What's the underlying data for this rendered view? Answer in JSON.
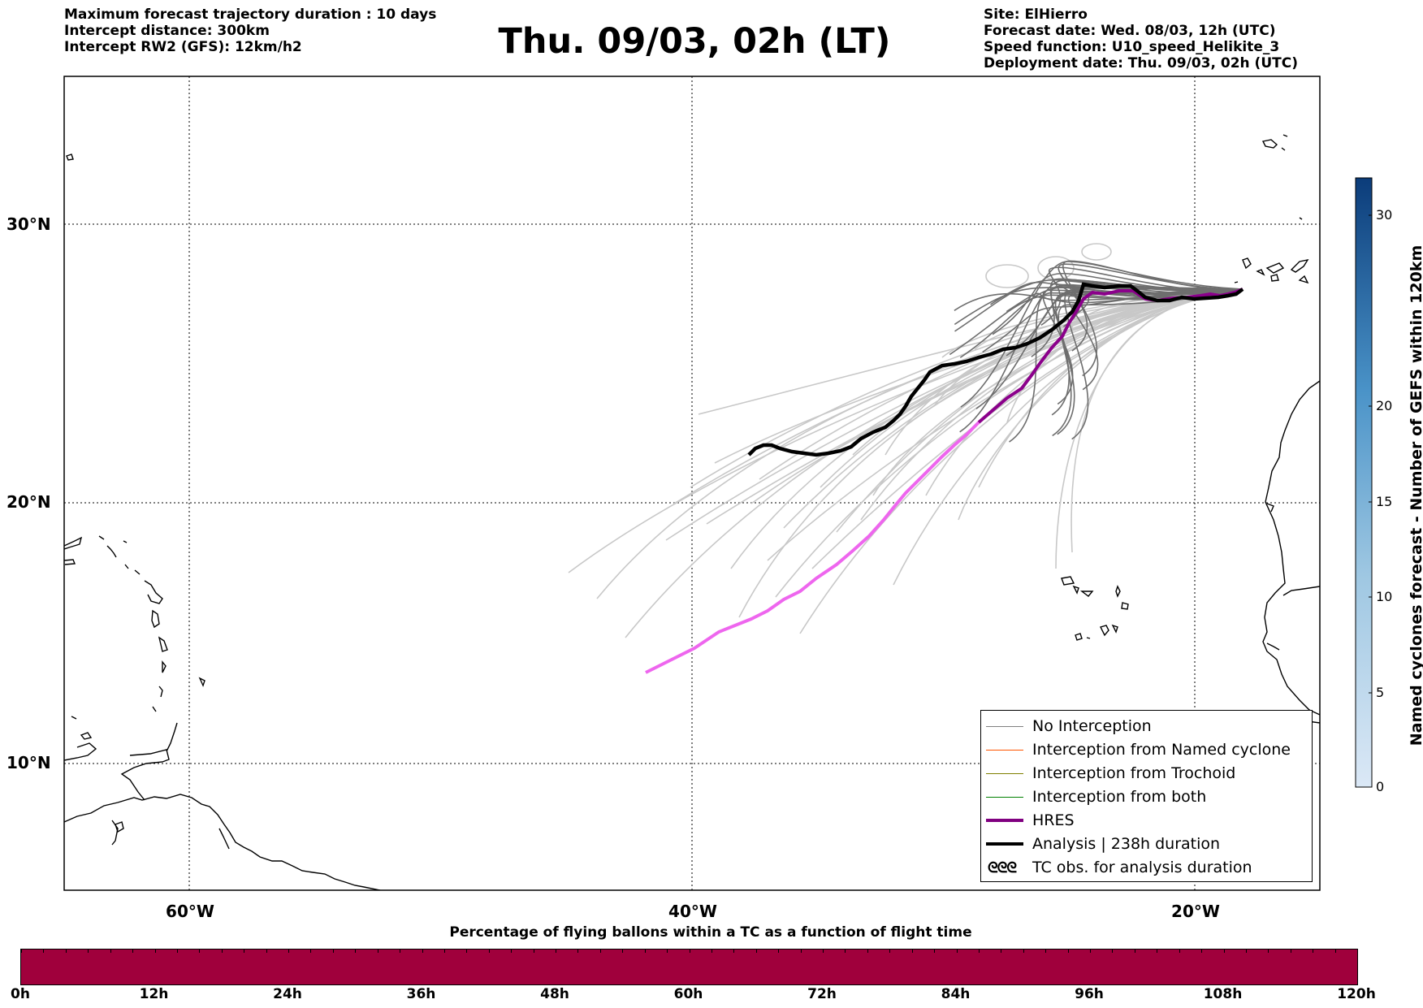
{
  "header": {
    "left_lines": [
      "Maximum forecast trajectory duration : 10 days",
      "Intercept distance: 300km",
      "Intercept RW2 (GFS):  12km/h2"
    ],
    "title": "Thu. 09/03, 02h (LT)",
    "right_lines": [
      "Site: ElHierro",
      "Forecast date: Wed. 08/03, 12h (UTC)",
      "Speed function: U10_speed_Helikite_3",
      "Deployment date: Thu. 09/03, 02h (UTC)"
    ]
  },
  "map": {
    "lat_labels": [
      "30°N",
      "20°N",
      "10°N"
    ],
    "lon_labels": [
      "60°W",
      "40°W",
      "20°W"
    ],
    "grid": "dotted"
  },
  "legend": {
    "items": [
      {
        "label": "No Interception",
        "color": "#808080"
      },
      {
        "label": "Interception from Named cyclone",
        "color": "#ff5500"
      },
      {
        "label": "Interception from Trochoid",
        "color": "#808000"
      },
      {
        "label": "Interception from both",
        "color": "#008000"
      },
      {
        "label": "HRES",
        "color": "#800080"
      },
      {
        "label": "Analysis | 238h duration",
        "color": "#000000"
      },
      {
        "label": "TC obs. for analysis duration",
        "color": "#000000"
      }
    ],
    "tc_symbol": "ᘓᘓᘓ"
  },
  "colorbar": {
    "label": "Named cyclones forecast - Number of GEFS within 120km",
    "ticks": [
      "0",
      "5",
      "10",
      "15",
      "20",
      "30"
    ],
    "low_color": "#dbe8f6",
    "high_color": "#0b3c7a"
  },
  "bottom": {
    "title": "Percentage of flying ballons within a TC as a function of flight time",
    "bar_color": "#a0003c",
    "ticks": [
      "0h",
      "12h",
      "24h",
      "36h",
      "48h",
      "60h",
      "72h",
      "84h",
      "96h",
      "108h",
      "120h"
    ]
  }
}
